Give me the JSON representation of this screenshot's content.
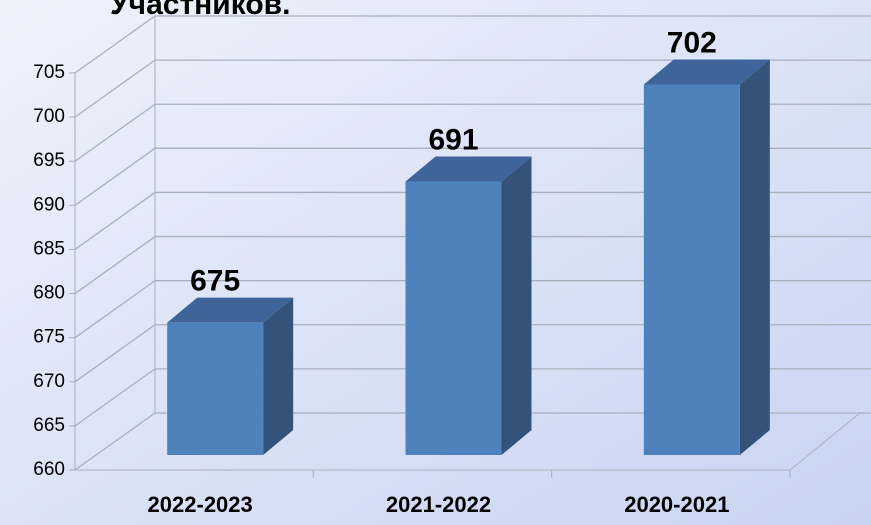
{
  "chart_data": {
    "type": "bar3d",
    "title": "Участников.",
    "categories": [
      "2022-2023",
      "2021-2022",
      "2020-2021"
    ],
    "values": [
      675,
      691,
      702
    ],
    "color": "#4f81bd",
    "ylim": [
      660,
      705
    ],
    "yticks": [
      660,
      665,
      670,
      675,
      680,
      685,
      690,
      695,
      700,
      705
    ],
    "grid": true
  }
}
